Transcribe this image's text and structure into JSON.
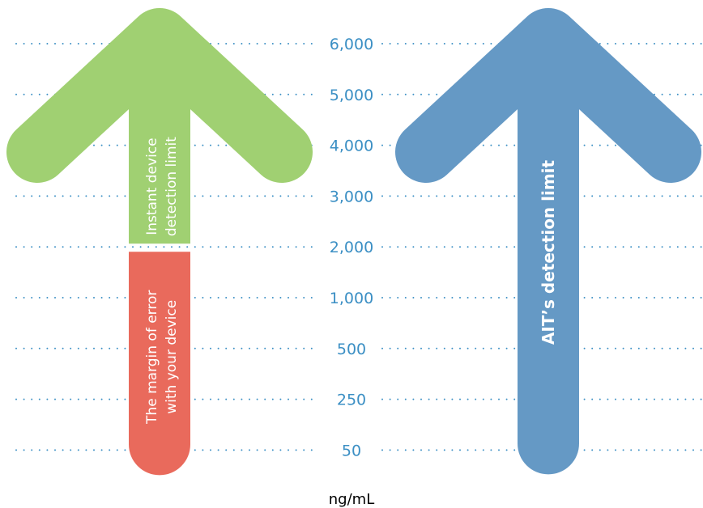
{
  "chart_data": {
    "type": "arrow-scale",
    "y_ticks": [
      "6,000",
      "5,000",
      "4,000",
      "3,000",
      "2,000",
      "1,000",
      "500",
      "250",
      "50"
    ],
    "unit": "ng/mL",
    "arrows": [
      {
        "id": "instant",
        "segments": [
          {
            "label": "The margin of error with your device",
            "from": "50",
            "to": "2,000",
            "color": "#e96a5c"
          },
          {
            "label": "Instant device detection limit",
            "from": "2,000",
            "to": "6,000",
            "color": "#a0d072"
          }
        ]
      },
      {
        "id": "ait",
        "segments": [
          {
            "label": "AIT’s detection limit",
            "from": "50",
            "to": "6,000",
            "color": "#6599c5"
          }
        ]
      }
    ]
  },
  "colors": {
    "gridline": "#3b8fc4",
    "tick_text": "#3b8fc4",
    "green": "#a0d072",
    "red": "#e96a5c",
    "blue": "#6599c5"
  }
}
